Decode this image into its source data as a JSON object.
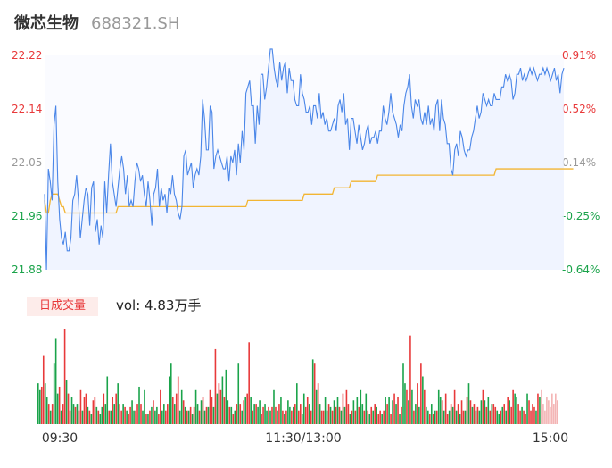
{
  "header": {
    "name": "微芯生物",
    "code": "688321.SH"
  },
  "volume_panel": {
    "label": "日成交量",
    "vol_text": "vol: 4.83万手"
  },
  "colors": {
    "price_line": "#4a86e8",
    "avg_line": "#f2b533",
    "up": "#e8393a",
    "down": "#1aa34a",
    "neutral": "#999999",
    "area_fill": "#f5f8ff"
  },
  "chart_data": [
    {
      "type": "line",
      "title": "",
      "series": [
        {
          "name": "",
          "values": [
            22.0,
            21.88,
            22.04,
            22.02,
            21.99,
            22.11,
            22.14,
            22.02,
            21.96,
            21.93,
            21.92,
            21.94,
            21.91,
            21.91,
            21.93,
            21.99,
            22.0,
            22.03,
            21.99,
            21.93,
            21.96,
            21.99,
            22.01,
            22.0,
            21.95,
            22.01,
            22.02,
            21.94,
            21.96,
            21.92,
            21.95,
            21.93,
            22.02,
            21.97,
            22.03,
            22.08,
            22.02,
            22.0,
            21.98,
            22.01,
            22.04,
            22.06,
            22.04,
            22.0,
            22.03,
            21.98,
            21.99,
            21.98,
            22.02,
            22.05,
            22.04,
            22.02,
            22.03,
            22.0,
            21.98,
            22.02,
            21.99,
            21.95,
            22.0,
            22.01,
            22.04,
            21.98,
            22.01,
            21.99,
            22.0,
            21.97,
            22.01,
            22.0,
            22.03,
            22.0,
            21.99,
            21.97,
            21.96,
            21.98,
            22.06,
            22.07,
            22.03,
            22.04,
            22.05,
            22.01,
            22.03,
            22.04,
            22.03,
            22.06,
            22.15,
            22.12,
            22.07,
            22.07,
            22.14,
            22.13,
            22.04,
            22.06,
            22.07,
            22.06,
            22.05,
            22.04,
            22.04,
            22.06,
            22.02,
            22.06,
            22.05,
            22.07,
            22.03,
            22.08,
            22.05,
            22.1,
            22.07,
            22.16,
            22.17,
            22.18,
            22.14,
            22.14,
            22.08,
            22.14,
            22.11,
            22.19,
            22.19,
            22.15,
            22.17,
            22.2,
            22.23,
            22.23,
            22.2,
            22.18,
            22.17,
            22.21,
            22.18,
            22.2,
            22.21,
            22.16,
            22.2,
            22.18,
            22.18,
            22.15,
            22.14,
            22.14,
            22.19,
            22.16,
            22.15,
            22.13,
            22.13,
            22.14,
            22.11,
            22.14,
            22.14,
            22.12,
            22.16,
            22.12,
            22.13,
            22.11,
            22.12,
            22.1,
            22.1,
            22.11,
            22.12,
            22.1,
            22.14,
            22.15,
            22.13,
            22.16,
            22.11,
            22.12,
            22.07,
            22.12,
            22.12,
            22.1,
            22.08,
            22.11,
            22.09,
            22.07,
            22.08,
            22.1,
            22.11,
            22.08,
            22.09,
            22.09,
            22.1,
            22.08,
            22.1,
            22.1,
            22.14,
            22.12,
            22.11,
            22.13,
            22.16,
            22.13,
            22.12,
            22.11,
            22.09,
            22.11,
            22.1,
            22.14,
            22.16,
            22.17,
            22.19,
            22.14,
            22.12,
            22.15,
            22.14,
            22.15,
            22.12,
            22.11,
            22.13,
            22.11,
            22.14,
            22.11,
            22.12,
            22.1,
            22.14,
            22.15,
            22.1,
            22.15,
            22.12,
            22.11,
            22.08,
            22.08,
            22.04,
            22.03,
            22.07,
            22.08,
            22.06,
            22.1,
            22.09,
            22.07,
            22.06,
            22.07,
            22.07,
            22.09,
            22.1,
            22.12,
            22.14,
            22.12,
            22.13,
            22.16,
            22.15,
            22.14,
            22.15,
            22.14,
            22.14,
            22.16,
            22.15,
            22.15,
            22.15,
            22.17,
            22.17,
            22.19,
            22.18,
            22.19,
            22.18,
            22.15,
            22.16,
            22.19,
            22.19,
            22.2,
            22.18,
            22.19,
            22.18,
            22.19,
            22.2,
            22.19,
            22.2,
            22.19,
            22.18,
            22.19,
            22.19,
            22.2,
            22.19,
            22.2,
            22.19,
            22.18,
            22.19,
            22.2,
            22.18,
            22.19,
            22.16,
            22.19,
            22.2
          ]
        },
        {
          "name": "",
          "values": [
            21.99,
            21.97,
            21.97,
            21.99,
            22.0,
            22.0,
            22.0,
            22.0,
            21.99,
            21.98,
            21.98,
            21.97,
            21.97,
            21.97,
            21.97,
            21.97,
            21.97,
            21.97,
            21.97,
            21.97,
            21.97,
            21.97,
            21.97,
            21.97,
            21.97,
            21.97,
            21.97,
            21.97,
            21.97,
            21.97,
            21.97,
            21.97,
            21.97,
            21.97,
            21.97,
            21.97,
            21.97,
            21.97,
            21.97,
            21.98,
            21.98,
            21.98,
            21.98,
            21.98,
            21.98,
            21.98,
            21.98,
            21.98,
            21.98,
            21.98,
            21.98,
            21.98,
            21.98,
            21.98,
            21.98,
            21.98,
            21.98,
            21.98,
            21.98,
            21.98,
            21.98,
            21.98,
            21.98,
            21.98,
            21.98,
            21.98,
            21.98,
            21.98,
            21.98,
            21.98,
            21.98,
            21.98,
            21.98,
            21.98,
            21.98,
            21.98,
            21.98,
            21.98,
            21.98,
            21.98,
            21.98,
            21.98,
            21.98,
            21.98,
            21.98,
            21.98,
            21.98,
            21.98,
            21.98,
            21.98,
            21.98,
            21.98,
            21.98,
            21.98,
            21.98,
            21.98,
            21.98,
            21.98,
            21.98,
            21.98,
            21.98,
            21.98,
            21.98,
            21.98,
            21.98,
            21.98,
            21.98,
            21.98,
            21.99,
            21.99,
            21.99,
            21.99,
            21.99,
            21.99,
            21.99,
            21.99,
            21.99,
            21.99,
            21.99,
            21.99,
            21.99,
            21.99,
            21.99,
            21.99,
            21.99,
            21.99,
            21.99,
            21.99,
            21.99,
            21.99,
            21.99,
            21.99,
            21.99,
            21.99,
            21.99,
            21.99,
            21.99,
            21.99,
            22.0,
            22.0,
            22.0,
            22.0,
            22.0,
            22.0,
            22.0,
            22.0,
            22.0,
            22.0,
            22.0,
            22.0,
            22.0,
            22.0,
            22.0,
            22.0,
            22.01,
            22.01,
            22.01,
            22.01,
            22.01,
            22.01,
            22.01,
            22.01,
            22.01,
            22.02,
            22.02,
            22.02,
            22.02,
            22.02,
            22.02,
            22.02,
            22.02,
            22.02,
            22.02,
            22.02,
            22.02,
            22.02,
            22.02,
            22.03,
            22.03,
            22.03,
            22.03,
            22.03,
            22.03,
            22.03,
            22.03,
            22.03,
            22.03,
            22.03,
            22.03,
            22.03,
            22.03,
            22.03,
            22.03,
            22.03,
            22.03,
            22.03,
            22.03,
            22.03,
            22.03,
            22.03,
            22.03,
            22.03,
            22.03,
            22.03,
            22.03,
            22.03,
            22.03,
            22.03,
            22.03,
            22.03,
            22.03,
            22.03,
            22.03,
            22.03,
            22.03,
            22.03,
            22.03,
            22.03,
            22.03,
            22.03,
            22.03,
            22.03,
            22.03,
            22.03,
            22.03,
            22.03,
            22.03,
            22.03,
            22.03,
            22.03,
            22.03,
            22.03,
            22.03,
            22.03,
            22.03,
            22.03,
            22.03,
            22.03,
            22.03,
            22.03,
            22.04,
            22.04,
            22.04,
            22.04,
            22.04,
            22.04,
            22.04,
            22.04,
            22.04,
            22.04,
            22.04,
            22.04,
            22.04,
            22.04,
            22.04,
            22.04,
            22.04,
            22.04,
            22.04,
            22.04,
            22.04,
            22.04,
            22.04,
            22.04,
            22.04,
            22.04,
            22.04,
            22.04,
            22.04,
            22.04,
            22.04,
            22.04,
            22.04,
            22.04,
            22.04,
            22.04,
            22.04,
            22.04,
            22.04,
            22.04,
            22.04,
            22.04
          ]
        }
      ],
      "ylim": [
        21.88,
        22.22
      ],
      "y_ticks": [
        "22.22",
        "22.14",
        "22.05",
        "21.96",
        "21.88"
      ],
      "y_ticks_right": [
        "0.91%",
        "0.52%",
        "0.14%",
        "-0.25%",
        "-0.64%"
      ],
      "x_ticks": [
        "09:30",
        "11:30/13:00",
        "15:00"
      ],
      "grid": false
    },
    {
      "type": "bar",
      "title": "日成交量",
      "vol_label": "vol: 4.83万手",
      "values": [
        12,
        10,
        11,
        20,
        12,
        8,
        6,
        4,
        6,
        18,
        25,
        9,
        11,
        4,
        6,
        28,
        13,
        9,
        4,
        8,
        6,
        5,
        6,
        4,
        10,
        4,
        8,
        9,
        5,
        4,
        3,
        7,
        8,
        5,
        4,
        3,
        5,
        9,
        6,
        14,
        4,
        4,
        8,
        6,
        9,
        12,
        6,
        4,
        6,
        5,
        4,
        3,
        5,
        7,
        4,
        4,
        6,
        11,
        6,
        4,
        10,
        3,
        3,
        4,
        5,
        7,
        4,
        5,
        3,
        10,
        4,
        6,
        4,
        6,
        14,
        18,
        8,
        6,
        9,
        14,
        4,
        10,
        7,
        5,
        4,
        4,
        5,
        3,
        5,
        10,
        6,
        4,
        7,
        8,
        4,
        5,
        5,
        10,
        8,
        5,
        22,
        9,
        12,
        10,
        14,
        8,
        16,
        7,
        5,
        5,
        3,
        4,
        6,
        18,
        6,
        4,
        7,
        8,
        9,
        24,
        8,
        4,
        6,
        6,
        5,
        7,
        3,
        5,
        6,
        4,
        5,
        4,
        5,
        10,
        5,
        4,
        6,
        8,
        4,
        3,
        4,
        7,
        5,
        4,
        5,
        6,
        12,
        4,
        6,
        3,
        9,
        5,
        8,
        6,
        4,
        19,
        18,
        10,
        12,
        6,
        4,
        4,
        8,
        4,
        6,
        5,
        4,
        7,
        5,
        8,
        5,
        4,
        9,
        5,
        10,
        6,
        3,
        4,
        7,
        4,
        8,
        5,
        10,
        6,
        4,
        9,
        4,
        3,
        5,
        4,
        6,
        5,
        3,
        4,
        3,
        4,
        8,
        6,
        8,
        3,
        7,
        9,
        6,
        8,
        3,
        5,
        18,
        12,
        10,
        7,
        26,
        10,
        4,
        6,
        12,
        5,
        18,
        14,
        10,
        5,
        4,
        3,
        6,
        3,
        4,
        4,
        10,
        8,
        7,
        4,
        9,
        3,
        4,
        6,
        5,
        10,
        4,
        6,
        3,
        7,
        4,
        4,
        8,
        12,
        7,
        5,
        6,
        4,
        5,
        4,
        7,
        10,
        7,
        5,
        8,
        4,
        6,
        6,
        5,
        4,
        3,
        4,
        5,
        6,
        4,
        8,
        7,
        5,
        10,
        9,
        8,
        6,
        4,
        5,
        4,
        3,
        9,
        7,
        4,
        6,
        5,
        4,
        9,
        8,
        10,
        6,
        4,
        8,
        7,
        5,
        9,
        6,
        9,
        7
      ],
      "colors": [
        "g",
        "g",
        "r",
        "r",
        "g",
        "g",
        "r",
        "g",
        "r",
        "g",
        "g",
        "g",
        "r",
        "g",
        "r",
        "r",
        "g",
        "r",
        "r",
        "g",
        "g",
        "r",
        "g",
        "r",
        "r",
        "g",
        "r",
        "r",
        "g",
        "r",
        "g",
        "r",
        "r",
        "g",
        "r",
        "g",
        "g",
        "r",
        "g",
        "g",
        "r",
        "g",
        "r",
        "g",
        "r",
        "g",
        "r",
        "r",
        "g",
        "r",
        "g",
        "r",
        "r",
        "g",
        "g",
        "r",
        "r",
        "g",
        "r",
        "g",
        "g",
        "r",
        "g",
        "r",
        "g",
        "r",
        "g",
        "g",
        "r",
        "r",
        "g",
        "g",
        "r",
        "r",
        "g",
        "g",
        "r",
        "g",
        "r",
        "r",
        "g",
        "g",
        "r",
        "g",
        "r",
        "g",
        "r",
        "g",
        "r",
        "g",
        "g",
        "r",
        "g",
        "r",
        "g",
        "r",
        "g",
        "r",
        "r",
        "g",
        "r",
        "g",
        "r",
        "r",
        "g",
        "r",
        "g",
        "g",
        "r",
        "g",
        "r",
        "g",
        "r",
        "g",
        "r",
        "g",
        "r",
        "g",
        "r",
        "r",
        "g",
        "r",
        "g",
        "r",
        "g",
        "g",
        "r",
        "r",
        "g",
        "g",
        "r",
        "g",
        "r",
        "g",
        "r",
        "g",
        "r",
        "g",
        "r",
        "g",
        "r",
        "g",
        "g",
        "r",
        "g",
        "r",
        "g",
        "r",
        "r",
        "g",
        "g",
        "r",
        "r",
        "g",
        "r",
        "g",
        "r",
        "g",
        "r",
        "g",
        "r",
        "r",
        "g",
        "g",
        "r",
        "g",
        "r",
        "g",
        "r",
        "g",
        "r",
        "g",
        "r",
        "g",
        "r",
        "r",
        "g",
        "r",
        "g",
        "r",
        "g",
        "r",
        "g",
        "g",
        "r",
        "g",
        "r",
        "g",
        "r",
        "g",
        "r",
        "g",
        "r",
        "r",
        "g",
        "r",
        "g",
        "r",
        "g",
        "r",
        "g",
        "r",
        "g",
        "r",
        "g",
        "r",
        "g",
        "g",
        "r",
        "g",
        "r",
        "g",
        "r",
        "g",
        "r",
        "g",
        "r",
        "g",
        "r",
        "g",
        "g",
        "r",
        "g",
        "r",
        "g",
        "r",
        "g",
        "g",
        "r",
        "g",
        "r",
        "r",
        "g",
        "r",
        "g",
        "r",
        "g",
        "r",
        "g",
        "r",
        "r",
        "g",
        "r",
        "g",
        "r",
        "g",
        "r",
        "g",
        "r",
        "g",
        "g",
        "r",
        "g",
        "r",
        "g",
        "r",
        "g",
        "r",
        "r",
        "g",
        "g",
        "r",
        "g",
        "r",
        "g",
        "r",
        "g",
        "r",
        "r",
        "g",
        "g",
        "r",
        "r",
        "g",
        "r",
        "r",
        "g",
        "r",
        "r",
        "r",
        "r",
        "g",
        "r",
        "g",
        "n"
      ]
    }
  ]
}
